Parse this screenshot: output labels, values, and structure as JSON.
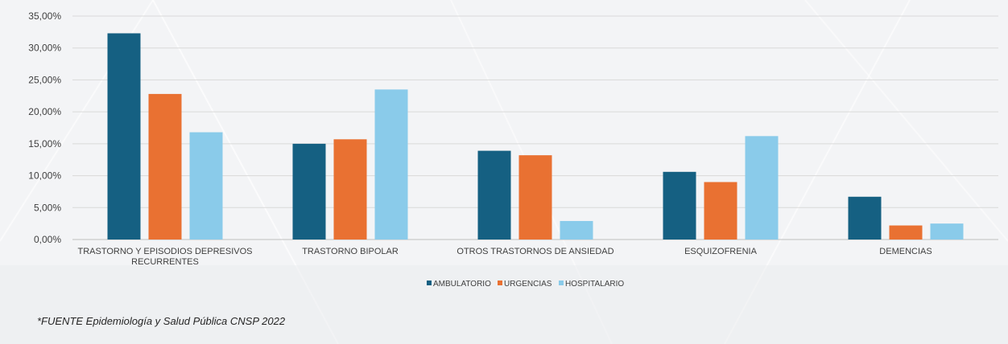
{
  "chart_data": {
    "type": "bar",
    "categories": [
      "TRASTORNO Y EPISODIOS DEPRESIVOS RECURRENTES",
      "TRASTORNO BIPOLAR",
      "OTROS TRASTORNOS DE ANSIEDAD",
      "ESQUIZOFRENIA",
      "DEMENCIAS"
    ],
    "category_lines": [
      [
        "TRASTORNO Y EPISODIOS DEPRESIVOS",
        "RECURRENTES"
      ],
      [
        "TRASTORNO BIPOLAR"
      ],
      [
        "OTROS TRASTORNOS DE ANSIEDAD"
      ],
      [
        "ESQUIZOFRENIA"
      ],
      [
        "DEMENCIAS"
      ]
    ],
    "series": [
      {
        "name": "AMBULATORIO",
        "color": "#156082",
        "values": [
          32.3,
          15.0,
          13.9,
          10.6,
          6.7
        ]
      },
      {
        "name": "URGENCIAS",
        "color": "#e97132",
        "values": [
          22.8,
          15.7,
          13.2,
          9.0,
          2.2
        ]
      },
      {
        "name": "HOSPITALARIO",
        "color": "#8acbea",
        "values": [
          16.8,
          23.5,
          2.9,
          16.2,
          2.5
        ]
      }
    ],
    "y_ticks": [
      "0,00%",
      "5,00%",
      "10,00%",
      "15,00%",
      "20,00%",
      "25,00%",
      "30,00%",
      "35,00%"
    ],
    "ylim": [
      0,
      35
    ],
    "grid": true,
    "legend_position": "bottom"
  },
  "footnote": "*FUENTE Epidemiología y Salud Pública CNSP 2022"
}
